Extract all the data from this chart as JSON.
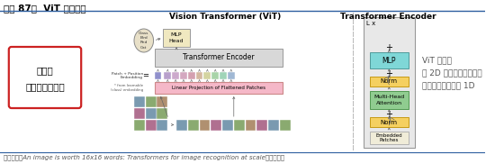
{
  "title": "图表 87：  ViT 基本架构",
  "bg_color": "#ffffff",
  "header_line_color": "#2e5fa0",
  "footer_line_color": "#2e5fa0",
  "footer_text": "资料来源：An image is worth 16x16 words: Transformers for image recognition at scale，中信建投",
  "left_box_line1": "将图片",
  "left_box_line2": "切割，解读输入",
  "left_box_border": "#cc2222",
  "vit_label": "Vision Transformer (ViT)",
  "encoder_label": "Transformer Encoder",
  "right_text_lines": [
    "ViT 将图片",
    "的 2D 信息，通过切割，",
    "转化为类似文本的 1D"
  ],
  "class_token_labels": [
    "Class",
    "Bird",
    "Red",
    "Cat"
  ],
  "mlp_head_label": "MLP\nHead",
  "transformer_encoder_box_label": "Transformer Encoder",
  "patch_pos_label": "Patch + Position\nEmbedding",
  "from_learnable_label": "* from learnable\n(class) embedding",
  "linear_proj_label": "Linear Projection of Flattened Patches",
  "enc_lx_label": "L x",
  "enc_mlp_label": "MLP",
  "enc_norm1_label": "Norm",
  "enc_mha_label": "Multi-Head\nAttention",
  "enc_norm2_label": "Norm",
  "enc_embedded_label": "Embedded\nPatches",
  "mlp_color": "#7fd7d7",
  "norm_color": "#f5d060",
  "mha_color": "#90cc90",
  "linear_proj_color": "#f5b8c8",
  "patch_colors": [
    "#b8a0cc",
    "#ccaacc",
    "#d4a8c0",
    "#d4a0b0",
    "#d4b8a0",
    "#d4d4a0",
    "#a8d4a8",
    "#a0d4b8",
    "#a0b8d4",
    "#b0a8d4"
  ],
  "class_patch_color": "#9090cc",
  "img_grid_colors": [
    [
      "#7a9ab0",
      "#8aaa70",
      "#b09070"
    ],
    [
      "#b07090",
      "#7a9ab0",
      "#8aaa70"
    ],
    [
      "#8aaa70",
      "#b07090",
      "#7a9ab0"
    ]
  ],
  "img_row_colors": [
    "#7a9ab0",
    "#8aaa70",
    "#b09070",
    "#b07090",
    "#7a9ab0",
    "#8aaa70",
    "#b09070",
    "#b07090",
    "#7a9ab0",
    "#8aaa70"
  ],
  "enc_box_color": "#e8e8e8",
  "enc_box_ec": "#999999",
  "te_box_color": "#d8d8d8",
  "mlp_head_color": "#f0e8c0",
  "class_oval_color": "#e8e0c8",
  "embedded_color": "#f0ecd8",
  "sep_line_color": "#aaaaaa"
}
